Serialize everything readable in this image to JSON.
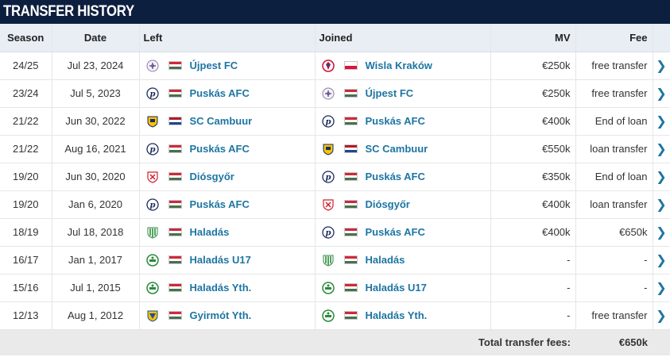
{
  "header": {
    "title": "TRANSFER HISTORY"
  },
  "columns": {
    "season": "Season",
    "date": "Date",
    "left": "Left",
    "joined": "Joined",
    "mv": "MV",
    "fee": "Fee"
  },
  "flags": {
    "HU": [
      "#ce2939",
      "#ffffff",
      "#477050"
    ],
    "PL": [
      "#ffffff",
      "#dc143c"
    ],
    "NL": [
      "#ae1c28",
      "#ffffff",
      "#21468b"
    ]
  },
  "accent_color": "#1d75a3",
  "rows": [
    {
      "season": "24/25",
      "date": "Jul 23, 2024",
      "left": {
        "name": "Újpest FC",
        "crest": "ujpest-crest-icon",
        "flag": "HU"
      },
      "joined": {
        "name": "Wisla Kraków",
        "crest": "wisla-crest-icon",
        "flag": "PL"
      },
      "mv": "€250k",
      "fee": "free transfer"
    },
    {
      "season": "23/24",
      "date": "Jul 5, 2023",
      "left": {
        "name": "Puskás AFC",
        "crest": "puskas-crest-icon",
        "flag": "HU"
      },
      "joined": {
        "name": "Újpest FC",
        "crest": "ujpest-crest-icon",
        "flag": "HU"
      },
      "mv": "€250k",
      "fee": "free transfer"
    },
    {
      "season": "21/22",
      "date": "Jun 30, 2022",
      "left": {
        "name": "SC Cambuur",
        "crest": "cambuur-crest-icon",
        "flag": "NL"
      },
      "joined": {
        "name": "Puskás AFC",
        "crest": "puskas-crest-icon",
        "flag": "HU"
      },
      "mv": "€400k",
      "fee": "End of loan"
    },
    {
      "season": "21/22",
      "date": "Aug 16, 2021",
      "left": {
        "name": "Puskás AFC",
        "crest": "puskas-crest-icon",
        "flag": "HU"
      },
      "joined": {
        "name": "SC Cambuur",
        "crest": "cambuur-crest-icon",
        "flag": "NL"
      },
      "mv": "€550k",
      "fee": "loan transfer"
    },
    {
      "season": "19/20",
      "date": "Jun 30, 2020",
      "left": {
        "name": "Diósgyőr",
        "crest": "diosgyor-crest-icon",
        "flag": "HU"
      },
      "joined": {
        "name": "Puskás AFC",
        "crest": "puskas-crest-icon",
        "flag": "HU"
      },
      "mv": "€350k",
      "fee": "End of loan"
    },
    {
      "season": "19/20",
      "date": "Jan 6, 2020",
      "left": {
        "name": "Puskás AFC",
        "crest": "puskas-crest-icon",
        "flag": "HU"
      },
      "joined": {
        "name": "Diósgyőr",
        "crest": "diosgyor-crest-icon",
        "flag": "HU"
      },
      "mv": "€400k",
      "fee": "loan transfer"
    },
    {
      "season": "18/19",
      "date": "Jul 18, 2018",
      "left": {
        "name": "Haladás",
        "crest": "haladas-crest-icon",
        "flag": "HU"
      },
      "joined": {
        "name": "Puskás AFC",
        "crest": "puskas-crest-icon",
        "flag": "HU"
      },
      "mv": "€400k",
      "fee": "€650k"
    },
    {
      "season": "16/17",
      "date": "Jan 1, 2017",
      "left": {
        "name": "Haladás U17",
        "crest": "haladas-youth-crest-icon",
        "flag": "HU"
      },
      "joined": {
        "name": "Haladás",
        "crest": "haladas-crest-icon",
        "flag": "HU"
      },
      "mv": "-",
      "fee": "-"
    },
    {
      "season": "15/16",
      "date": "Jul 1, 2015",
      "left": {
        "name": "Haladás Yth.",
        "crest": "haladas-youth-crest-icon",
        "flag": "HU"
      },
      "joined": {
        "name": "Haladás U17",
        "crest": "haladas-youth-crest-icon",
        "flag": "HU"
      },
      "mv": "-",
      "fee": "-"
    },
    {
      "season": "12/13",
      "date": "Aug 1, 2012",
      "left": {
        "name": "Gyirmót Yth.",
        "crest": "gyirmot-crest-icon",
        "flag": "HU"
      },
      "joined": {
        "name": "Haladás Yth.",
        "crest": "haladas-youth-crest-icon",
        "flag": "HU"
      },
      "mv": "-",
      "fee": "free transfer"
    }
  ],
  "total": {
    "label": "Total transfer fees:",
    "value": "€650k"
  },
  "arrow_icon": "chevron-right-icon"
}
